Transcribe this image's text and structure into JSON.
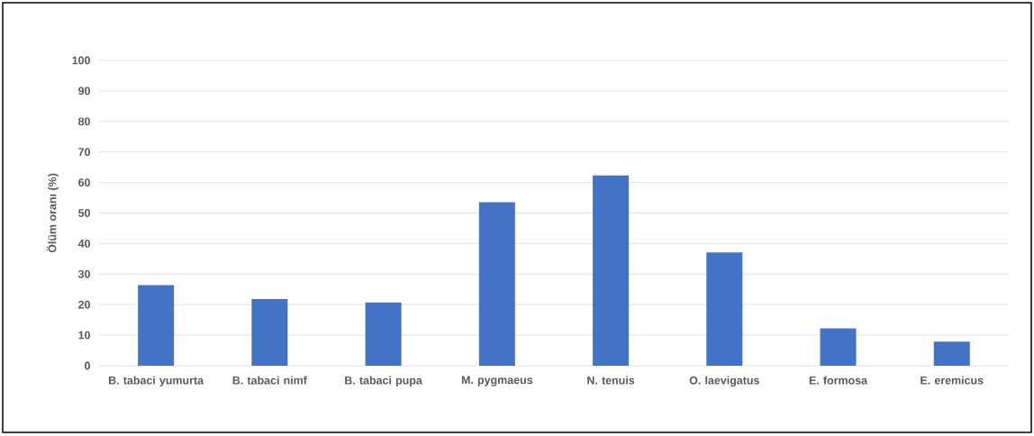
{
  "chart_data": {
    "type": "bar",
    "ylabel": "Ölüm oranı (%)",
    "categories": [
      "B. tabaci yumurta",
      "B. tabaci nimf",
      "B. tabaci pupa",
      "M. pygmaeus",
      "N. tenuis",
      "O. laevigatus",
      "E. formosa",
      "E. eremicus"
    ],
    "values": [
      26.4,
      21.8,
      20.7,
      53.5,
      62.3,
      37.1,
      12.2,
      7.9
    ],
    "color": "#4472c4",
    "ylim": [
      0,
      100
    ],
    "yticks": [
      0,
      10,
      20,
      30,
      40,
      50,
      60,
      70,
      80,
      90,
      100
    ],
    "grid": "y"
  }
}
